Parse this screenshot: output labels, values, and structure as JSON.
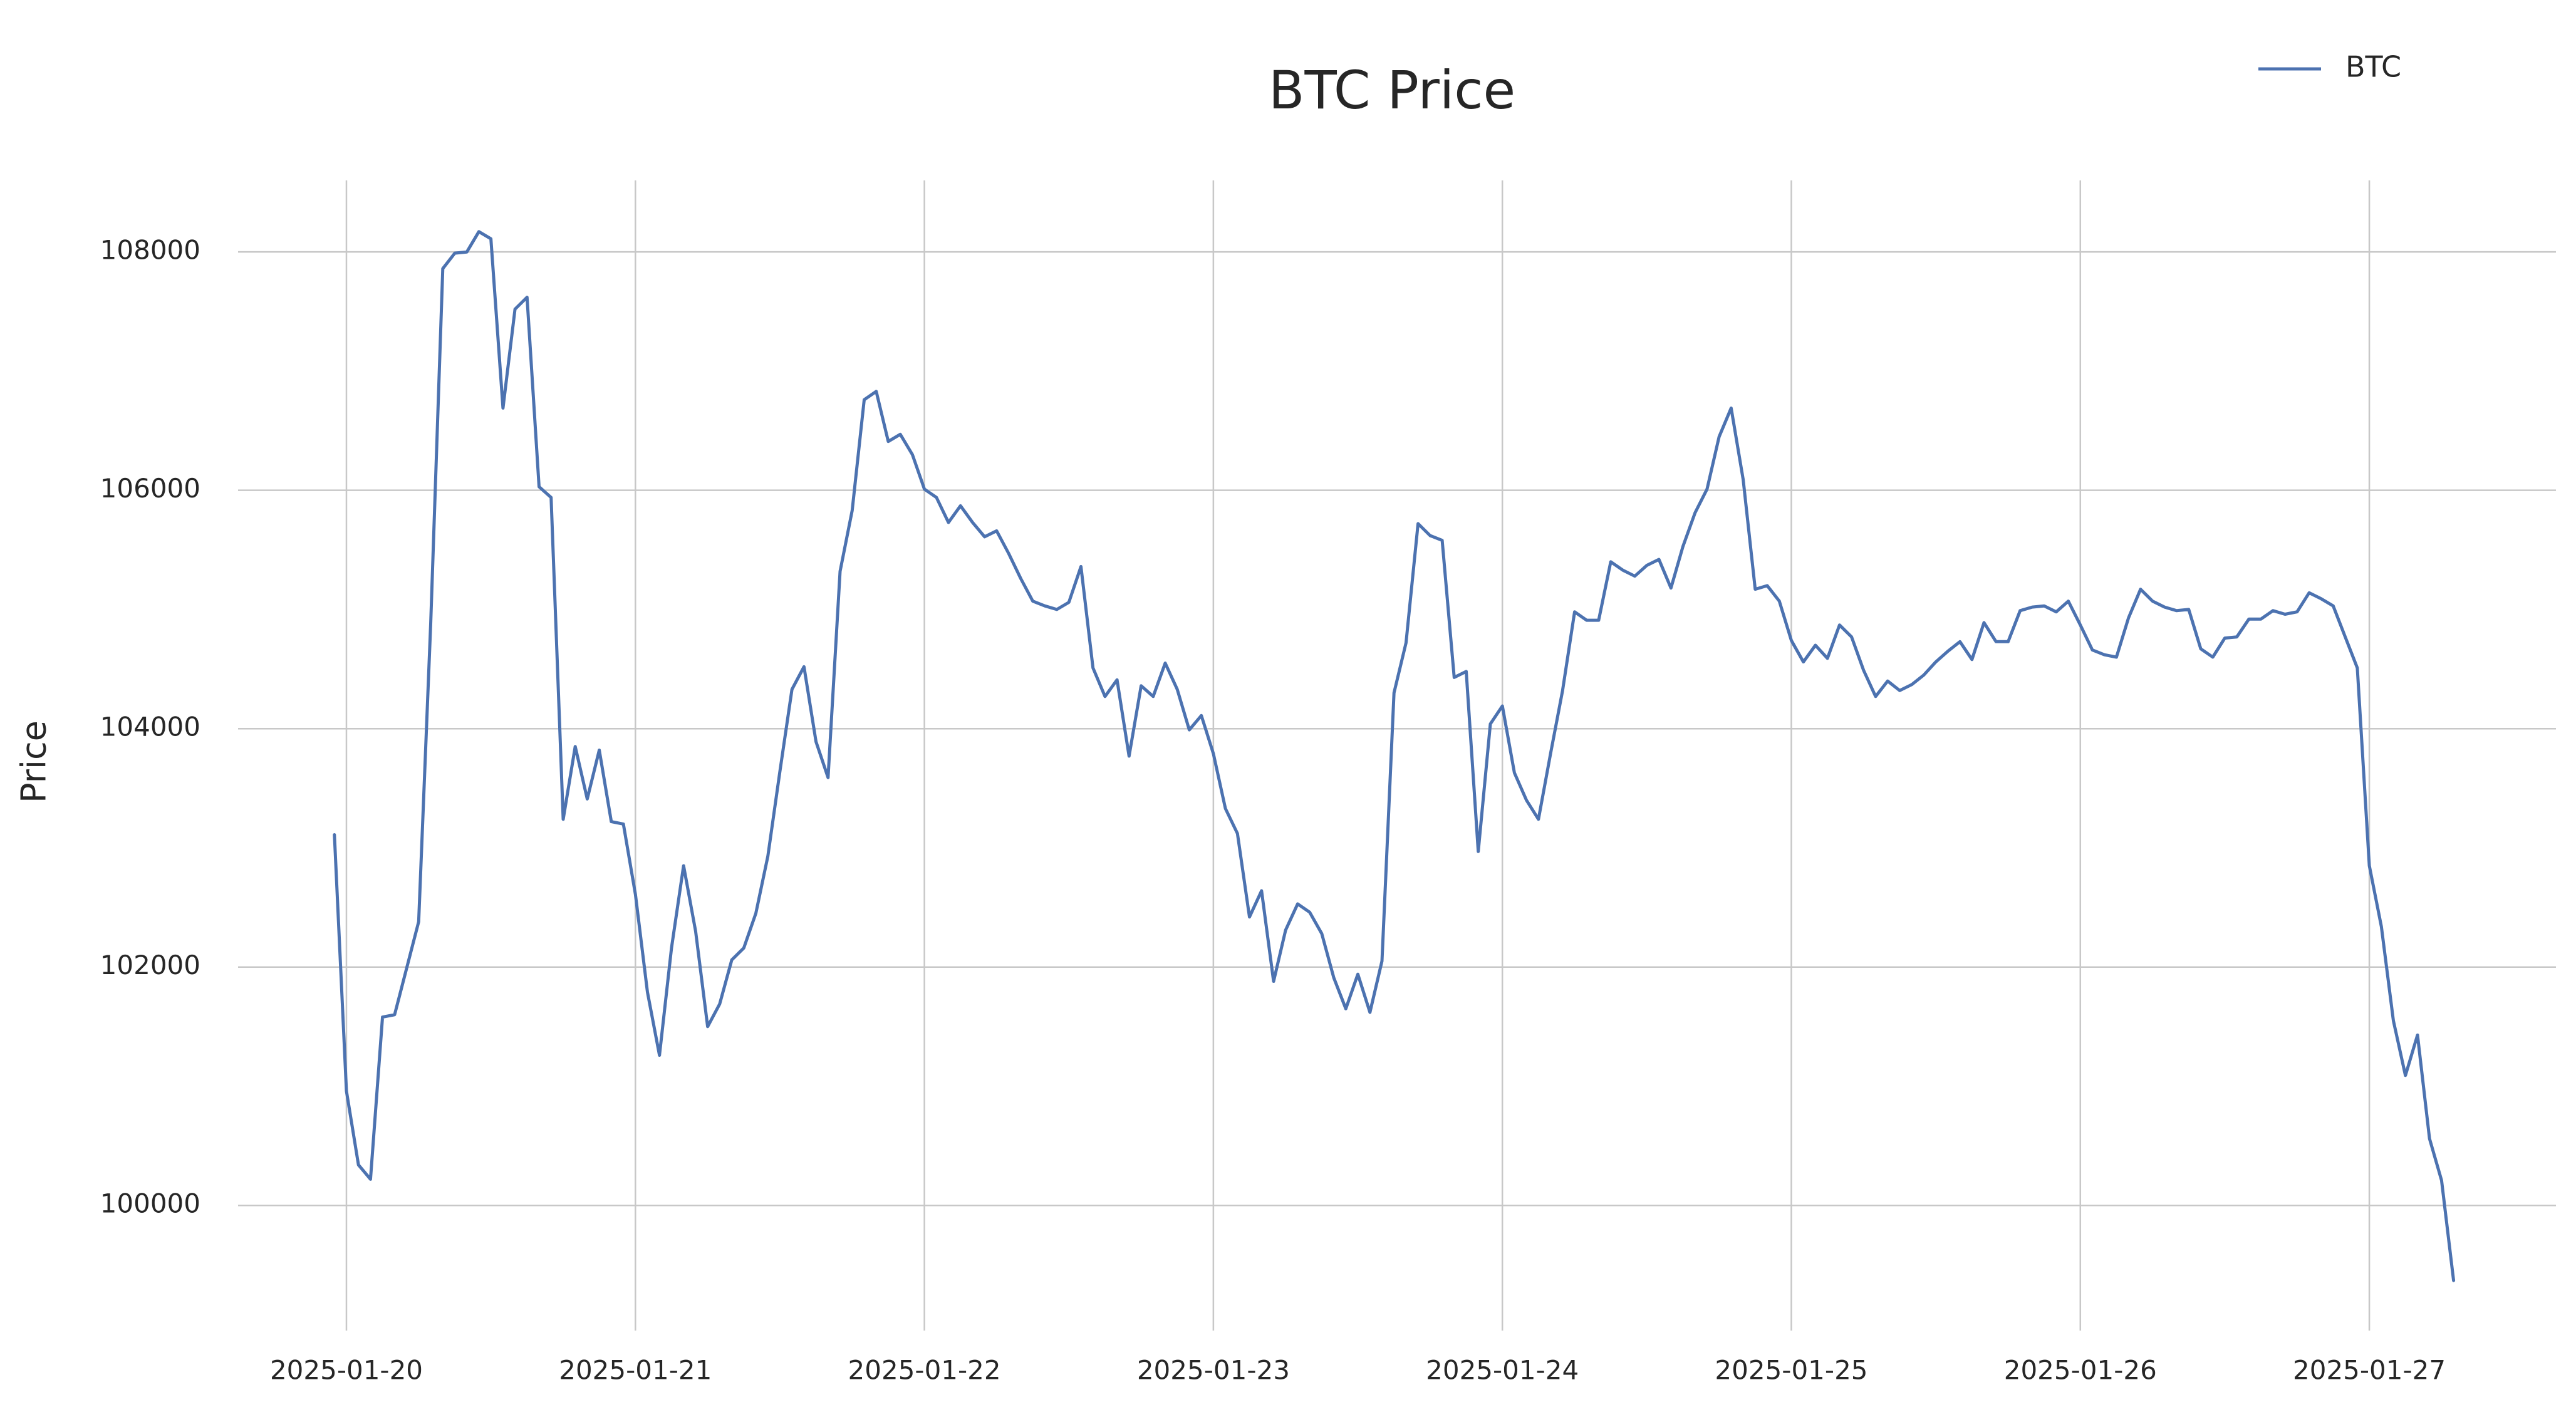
{
  "chart_data": {
    "type": "line",
    "title": "BTC Price",
    "ylabel": "Price",
    "x": [
      "2025-01-19 23:00",
      "2025-01-20 00:00",
      "2025-01-20 01:00",
      "2025-01-20 02:00",
      "2025-01-20 03:00",
      "2025-01-20 04:00",
      "2025-01-20 05:00",
      "2025-01-20 06:00",
      "2025-01-20 07:00",
      "2025-01-20 08:00",
      "2025-01-20 09:00",
      "2025-01-20 10:00",
      "2025-01-20 11:00",
      "2025-01-20 12:00",
      "2025-01-20 13:00",
      "2025-01-20 14:00",
      "2025-01-20 15:00",
      "2025-01-20 16:00",
      "2025-01-20 17:00",
      "2025-01-20 18:00",
      "2025-01-20 19:00",
      "2025-01-20 20:00",
      "2025-01-20 21:00",
      "2025-01-20 22:00",
      "2025-01-20 23:00",
      "2025-01-21 00:00",
      "2025-01-21 01:00",
      "2025-01-21 02:00",
      "2025-01-21 03:00",
      "2025-01-21 04:00",
      "2025-01-21 05:00",
      "2025-01-21 06:00",
      "2025-01-21 07:00",
      "2025-01-21 08:00",
      "2025-01-21 09:00",
      "2025-01-21 10:00",
      "2025-01-21 11:00",
      "2025-01-21 12:00",
      "2025-01-21 13:00",
      "2025-01-21 14:00",
      "2025-01-21 15:00",
      "2025-01-21 16:00",
      "2025-01-21 17:00",
      "2025-01-21 18:00",
      "2025-01-21 19:00",
      "2025-01-21 20:00",
      "2025-01-21 21:00",
      "2025-01-21 22:00",
      "2025-01-21 23:00",
      "2025-01-22 00:00",
      "2025-01-22 01:00",
      "2025-01-22 02:00",
      "2025-01-22 03:00",
      "2025-01-22 04:00",
      "2025-01-22 05:00",
      "2025-01-22 06:00",
      "2025-01-22 07:00",
      "2025-01-22 08:00",
      "2025-01-22 09:00",
      "2025-01-22 10:00",
      "2025-01-22 11:00",
      "2025-01-22 12:00",
      "2025-01-22 13:00",
      "2025-01-22 14:00",
      "2025-01-22 15:00",
      "2025-01-22 16:00",
      "2025-01-22 17:00",
      "2025-01-22 18:00",
      "2025-01-22 19:00",
      "2025-01-22 20:00",
      "2025-01-22 21:00",
      "2025-01-22 22:00",
      "2025-01-22 23:00",
      "2025-01-23 00:00",
      "2025-01-23 01:00",
      "2025-01-23 02:00",
      "2025-01-23 03:00",
      "2025-01-23 04:00",
      "2025-01-23 05:00",
      "2025-01-23 06:00",
      "2025-01-23 07:00",
      "2025-01-23 08:00",
      "2025-01-23 09:00",
      "2025-01-23 10:00",
      "2025-01-23 11:00",
      "2025-01-23 12:00",
      "2025-01-23 13:00",
      "2025-01-23 14:00",
      "2025-01-23 15:00",
      "2025-01-23 16:00",
      "2025-01-23 17:00",
      "2025-01-23 18:00",
      "2025-01-23 19:00",
      "2025-01-23 20:00",
      "2025-01-23 21:00",
      "2025-01-23 22:00",
      "2025-01-23 23:00",
      "2025-01-24 00:00",
      "2025-01-24 01:00",
      "2025-01-24 02:00",
      "2025-01-24 03:00",
      "2025-01-24 04:00",
      "2025-01-24 05:00",
      "2025-01-24 06:00",
      "2025-01-24 07:00",
      "2025-01-24 08:00",
      "2025-01-24 09:00",
      "2025-01-24 10:00",
      "2025-01-24 11:00",
      "2025-01-24 12:00",
      "2025-01-24 13:00",
      "2025-01-24 14:00",
      "2025-01-24 15:00",
      "2025-01-24 16:00",
      "2025-01-24 17:00",
      "2025-01-24 18:00",
      "2025-01-24 19:00",
      "2025-01-24 20:00",
      "2025-01-24 21:00",
      "2025-01-24 22:00",
      "2025-01-24 23:00",
      "2025-01-25 00:00",
      "2025-01-25 01:00",
      "2025-01-25 02:00",
      "2025-01-25 03:00",
      "2025-01-25 04:00",
      "2025-01-25 05:00",
      "2025-01-25 06:00",
      "2025-01-25 07:00",
      "2025-01-25 08:00",
      "2025-01-25 09:00",
      "2025-01-25 10:00",
      "2025-01-25 11:00",
      "2025-01-25 12:00",
      "2025-01-25 13:00",
      "2025-01-25 14:00",
      "2025-01-25 15:00",
      "2025-01-25 16:00",
      "2025-01-25 17:00",
      "2025-01-25 18:00",
      "2025-01-25 19:00",
      "2025-01-25 20:00",
      "2025-01-25 21:00",
      "2025-01-25 22:00",
      "2025-01-25 23:00",
      "2025-01-26 00:00",
      "2025-01-26 01:00",
      "2025-01-26 02:00",
      "2025-01-26 03:00",
      "2025-01-26 04:00",
      "2025-01-26 05:00",
      "2025-01-26 06:00",
      "2025-01-26 07:00",
      "2025-01-26 08:00",
      "2025-01-26 09:00",
      "2025-01-26 10:00",
      "2025-01-26 11:00",
      "2025-01-26 12:00",
      "2025-01-26 13:00",
      "2025-01-26 14:00",
      "2025-01-26 15:00",
      "2025-01-26 16:00",
      "2025-01-26 17:00",
      "2025-01-26 18:00",
      "2025-01-26 19:00",
      "2025-01-26 20:00",
      "2025-01-26 21:00",
      "2025-01-26 22:00",
      "2025-01-26 23:00",
      "2025-01-27 00:00",
      "2025-01-27 01:00",
      "2025-01-27 02:00",
      "2025-01-27 03:00",
      "2025-01-27 04:00",
      "2025-01-27 05:00",
      "2025-01-27 06:00",
      "2025-01-27 07:00"
    ],
    "series": [
      {
        "name": "BTC",
        "color": "#4c72b0",
        "values": [
          103110,
          100960,
          100340,
          100220,
          101580,
          101600,
          101990,
          102380,
          104880,
          107860,
          107990,
          108000,
          108170,
          108110,
          106690,
          107520,
          107620,
          106030,
          105940,
          103240,
          103850,
          103410,
          103820,
          103220,
          103200,
          102610,
          101790,
          101260,
          102160,
          102850,
          102300,
          101500,
          101690,
          102060,
          102160,
          102450,
          102930,
          103640,
          104330,
          104520,
          103890,
          103590,
          105320,
          105830,
          106760,
          106830,
          106410,
          106470,
          106300,
          106010,
          105940,
          105730,
          105870,
          105730,
          105610,
          105660,
          105470,
          105260,
          105070,
          105030,
          105000,
          105060,
          105360,
          104510,
          104270,
          104410,
          103770,
          104360,
          104270,
          104550,
          104330,
          103990,
          104110,
          103790,
          103330,
          103120,
          102420,
          102640,
          101880,
          102310,
          102530,
          102460,
          102280,
          101910,
          101650,
          101940,
          101620,
          102050,
          104300,
          104720,
          105720,
          105620,
          105580,
          104430,
          104480,
          102970,
          104040,
          104190,
          103630,
          103400,
          103240,
          103790,
          104320,
          104980,
          104910,
          104910,
          105400,
          105330,
          105280,
          105370,
          105420,
          105180,
          105530,
          105810,
          106010,
          106450,
          106690,
          106090,
          105170,
          105200,
          105070,
          104740,
          104560,
          104700,
          104590,
          104870,
          104770,
          104490,
          104270,
          104400,
          104320,
          104370,
          104450,
          104560,
          104650,
          104730,
          104580,
          104890,
          104730,
          104730,
          104990,
          105020,
          105030,
          104980,
          105070,
          104870,
          104660,
          104620,
          104600,
          104930,
          105170,
          105070,
          105020,
          104990,
          105000,
          104670,
          104600,
          104760,
          104770,
          104920,
          104920,
          104990,
          104960,
          104980,
          105140,
          105090,
          105030,
          104770,
          104510,
          102850,
          102340,
          101550,
          101090,
          101430,
          100560,
          100210,
          99370
        ]
      }
    ],
    "xlim": [
      "2025-01-19 15:00",
      "2025-01-27 15:30"
    ],
    "xticks": [
      "2025-01-20",
      "2025-01-21",
      "2025-01-22",
      "2025-01-23",
      "2025-01-24",
      "2025-01-25",
      "2025-01-26",
      "2025-01-27"
    ],
    "ylim": [
      98950,
      108600
    ],
    "yticks": [
      100000,
      102000,
      104000,
      106000,
      108000
    ],
    "grid": true,
    "legend": "upper right"
  }
}
